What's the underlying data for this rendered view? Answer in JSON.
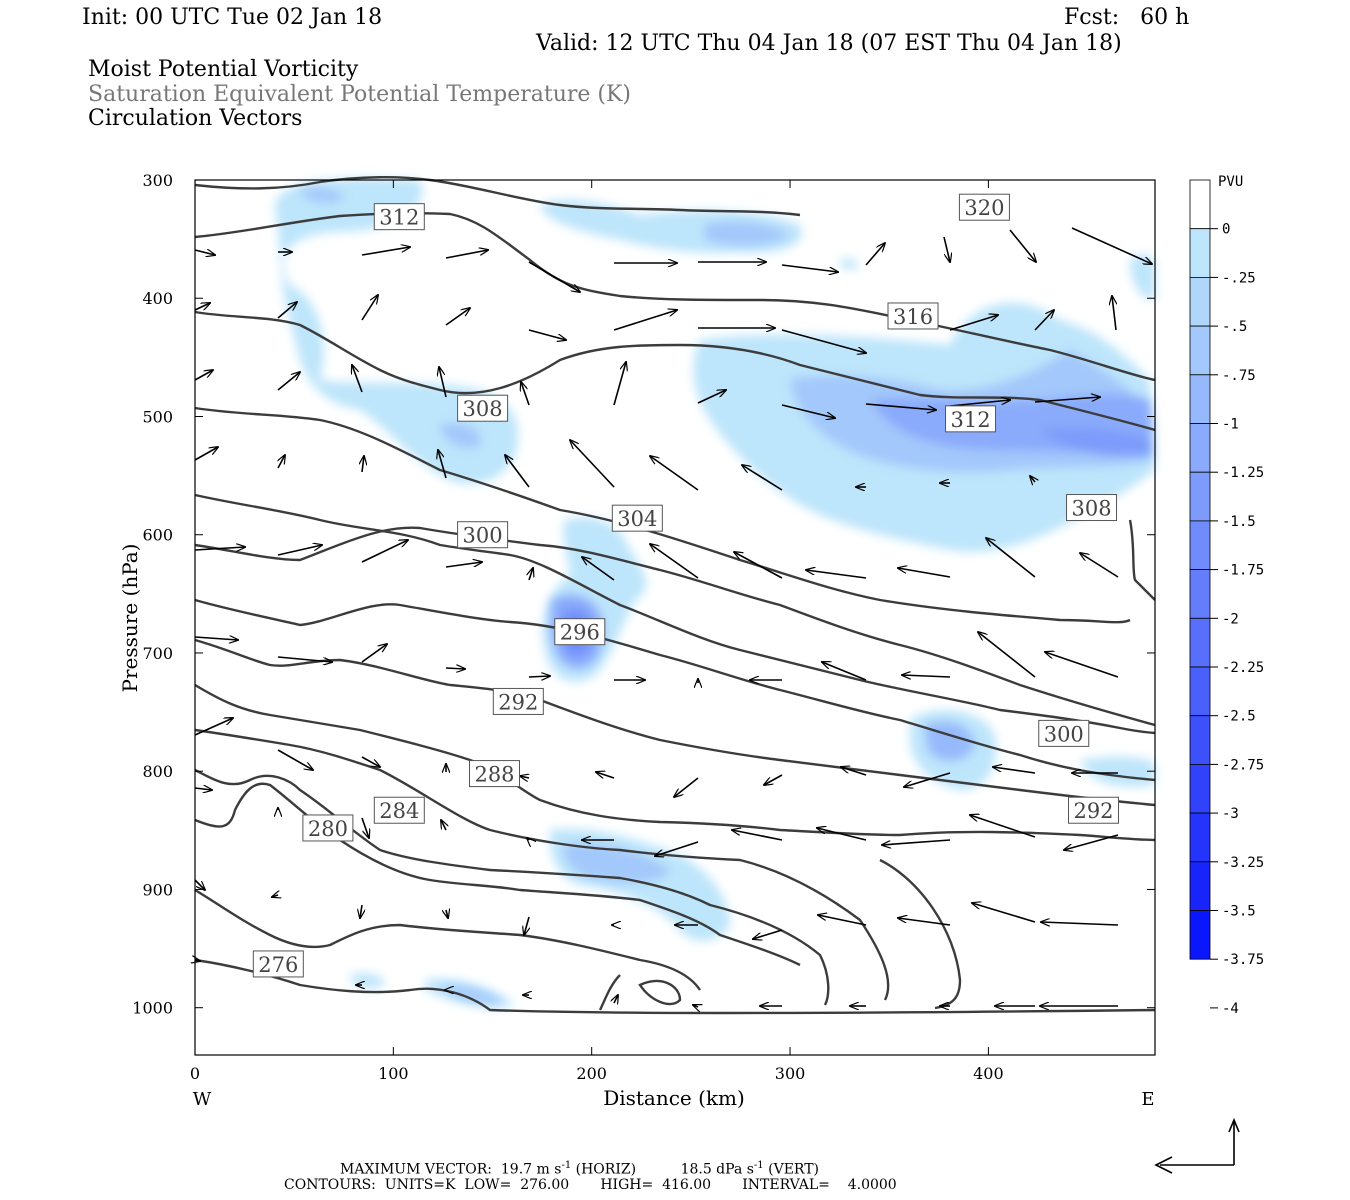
{
  "header": {
    "init": "Init: 00 UTC Tue 02 Jan 18",
    "fcst": "Fcst:   60 h",
    "valid": "Valid: 12 UTC Thu 04 Jan 18 (07 EST Thu 04 Jan 18)",
    "line1": "Moist Potential Vorticity",
    "line2": "Saturation Equivalent Potential Temperature (K)",
    "line3": "Circulation Vectors"
  },
  "chart_data": {
    "type": "contour",
    "xlabel": "Distance (km)",
    "ylabel": "Pressure (hPa)",
    "xlim": [
      0,
      484
    ],
    "ylim": [
      1040,
      300
    ],
    "x_ticks": [
      0,
      100,
      200,
      300,
      400
    ],
    "y_ticks": [
      300,
      400,
      500,
      600,
      700,
      800,
      900,
      1000
    ],
    "x_end_labels": {
      "left": "W",
      "right": "E"
    },
    "colorbar": {
      "unit": "PVU",
      "levels": [
        "0",
        "-.25",
        "-.5",
        "-.75",
        "-1",
        "-1.25",
        "-1.5",
        "-1.75",
        "-2",
        "-2.25",
        "-2.5",
        "-2.75",
        "-3",
        "-3.25",
        "-3.5",
        "-3.75",
        "-4"
      ],
      "colors": [
        "#ffffff",
        "#bde5fb",
        "#b0d6fb",
        "#a3c8fb",
        "#96b9fb",
        "#8aaafb",
        "#7d9bfb",
        "#708cfb",
        "#647dfb",
        "#576ffb",
        "#4a60fb",
        "#3d51fb",
        "#3142fb",
        "#2434fb",
        "#1725fb",
        "#0a16fb"
      ]
    },
    "contour_labels": [
      {
        "value": "312",
        "x": 103,
        "p": 331
      },
      {
        "value": "320",
        "x": 398,
        "p": 323
      },
      {
        "value": "316",
        "x": 362,
        "p": 415
      },
      {
        "value": "308",
        "x": 145,
        "p": 493
      },
      {
        "value": "312",
        "x": 391,
        "p": 502
      },
      {
        "value": "308",
        "x": 452,
        "p": 577
      },
      {
        "value": "304",
        "x": 223,
        "p": 586
      },
      {
        "value": "300",
        "x": 145,
        "p": 600
      },
      {
        "value": "296",
        "x": 194,
        "p": 682
      },
      {
        "value": "292",
        "x": 163,
        "p": 741
      },
      {
        "value": "300",
        "x": 438,
        "p": 768
      },
      {
        "value": "288",
        "x": 151,
        "p": 802
      },
      {
        "value": "284",
        "x": 103,
        "p": 833
      },
      {
        "value": "280",
        "x": 67,
        "p": 848
      },
      {
        "value": "292",
        "x": 453,
        "p": 833
      },
      {
        "value": "276",
        "x": 42,
        "p": 963
      }
    ]
  },
  "footer": {
    "max_vector_label": "MAXIMUM VECTOR:",
    "horiz_value": "19.7 m s",
    "horiz_exp": "-1",
    "horiz_tag": " (HORIZ)",
    "vert_value": "18.5 dPa s",
    "vert_exp": "-1",
    "vert_tag": " (VERT)",
    "contours": "CONTOURS:  UNITS=K  LOW=  276.00       HIGH=  416.00       INTERVAL=    4.0000"
  }
}
